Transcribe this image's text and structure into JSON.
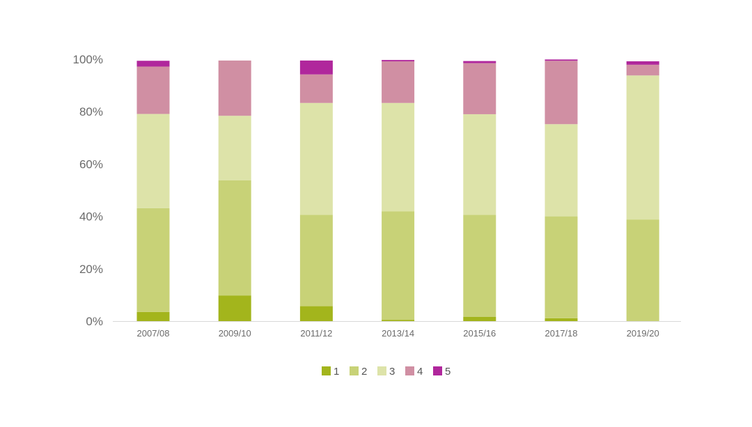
{
  "chart_data": {
    "type": "bar",
    "stacked": true,
    "percent": true,
    "categories": [
      "2007/08",
      "2009/10",
      "2011/12",
      "2013/14",
      "2015/16",
      "2017/18",
      "2019/20"
    ],
    "series": [
      {
        "name": "1",
        "color": "#a3b51c",
        "values": [
          3.5,
          9.8,
          5.7,
          0.5,
          1.6,
          1.1,
          0.0
        ]
      },
      {
        "name": "2",
        "color": "#c8d277",
        "values": [
          39.6,
          44.0,
          34.9,
          41.4,
          39.0,
          38.9,
          38.8
        ]
      },
      {
        "name": "3",
        "color": "#dde3a9",
        "values": [
          36.0,
          24.6,
          42.7,
          41.4,
          38.4,
          35.2,
          55.0
        ]
      },
      {
        "name": "4",
        "color": "#d08fa3",
        "values": [
          18.1,
          21.1,
          10.9,
          15.9,
          19.5,
          24.2,
          4.1
        ]
      },
      {
        "name": "5",
        "color": "#b0279c",
        "values": [
          2.2,
          0.0,
          5.3,
          0.5,
          0.8,
          0.5,
          1.3
        ]
      }
    ],
    "yticks": [
      "0%",
      "20%",
      "40%",
      "60%",
      "80%",
      "100%"
    ],
    "ylim": [
      0,
      100
    ],
    "legend_position": "bottom-center",
    "grid": false
  }
}
